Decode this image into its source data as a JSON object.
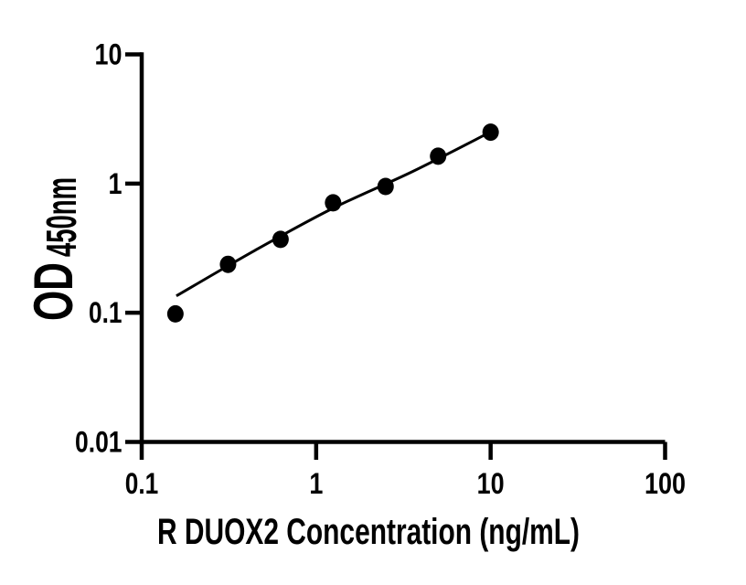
{
  "figure": {
    "background_color": "#ffffff",
    "ink_color": "#000000"
  },
  "chart_data": {
    "type": "scatter",
    "title": "",
    "xlabel": "R DUOX2 Concentration (ng/mL)",
    "ylabel_main": "OD",
    "ylabel_sub": "450nm",
    "x_scale": "log10",
    "y_scale": "log10",
    "xlim": [
      0.1,
      100
    ],
    "ylim": [
      0.01,
      10
    ],
    "grid": false,
    "legend": false,
    "x_ticks": [
      {
        "value": 0.1,
        "label": "0.1"
      },
      {
        "value": 1,
        "label": "1"
      },
      {
        "value": 10,
        "label": "10"
      },
      {
        "value": 100,
        "label": "100"
      }
    ],
    "y_ticks": [
      {
        "value": 0.01,
        "label": "0.01"
      },
      {
        "value": 0.1,
        "label": "0.1"
      },
      {
        "value": 1,
        "label": "1"
      },
      {
        "value": 10,
        "label": "10"
      }
    ],
    "series": [
      {
        "name": "standard-points",
        "marker": "filled-circle",
        "color": "#000000",
        "points": [
          {
            "x": 0.156,
            "y": 0.098
          },
          {
            "x": 0.3125,
            "y": 0.237
          },
          {
            "x": 0.625,
            "y": 0.37
          },
          {
            "x": 1.25,
            "y": 0.71
          },
          {
            "x": 2.5,
            "y": 0.95
          },
          {
            "x": 5,
            "y": 1.63
          },
          {
            "x": 10,
            "y": 2.5
          }
        ]
      }
    ],
    "fit_curve": {
      "name": "standard-curve-fit",
      "color": "#000000",
      "points": [
        {
          "x": 0.158,
          "y": 0.135
        },
        {
          "x": 0.446,
          "y": 0.304
        },
        {
          "x": 1.25,
          "y": 0.645
        },
        {
          "x": 3.55,
          "y": 1.235
        },
        {
          "x": 10,
          "y": 2.51
        }
      ]
    }
  }
}
